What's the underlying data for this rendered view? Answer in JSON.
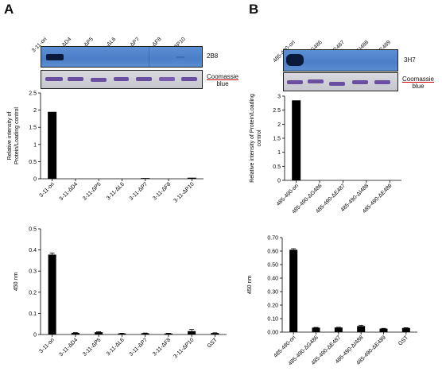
{
  "panels": [
    {
      "letter": "A",
      "blot": {
        "lanes": [
          "3-11-ori",
          "3-11-ΔD4",
          "3-11-ΔP5",
          "3-11-ΔL6",
          "3-11-ΔP7",
          "3-11-ΔF8",
          "3-11-ΔP10"
        ],
        "antibody": "2B8",
        "loading_label_1": "Coomassie",
        "loading_label_2": "blue"
      }
    },
    {
      "letter": "B",
      "blot": {
        "lanes": [
          "485-490-ori",
          "485-490-ΔG486",
          "485-490-ΔE487",
          "485-490-ΔI488",
          "485-490-ΔE489"
        ],
        "antibody": "3H7",
        "loading_label_1": "Coomassie",
        "loading_label_2": "blue"
      }
    }
  ],
  "colors": {
    "blot_blue": "#4a7fc8",
    "band_dark": "#0b1a3a",
    "coomassie_band": "#6a4ea0",
    "bar": "#000000",
    "coomassie_underline": "#cc0000"
  },
  "chart_data": [
    {
      "type": "bar",
      "panel": "A",
      "ylabel": "Relative intensity of Protein/Loading control",
      "categories": [
        "3-11-ori",
        "3-11-ΔD4",
        "3-11-ΔP5",
        "3-11-ΔL6",
        "3-11-ΔP7",
        "3-11-ΔF8",
        "3-11-ΔP10"
      ],
      "values": [
        1.95,
        0.0,
        0.0,
        0.0,
        0.02,
        0.0,
        0.03
      ],
      "errors": [
        0,
        0,
        0,
        0,
        0,
        0,
        0
      ],
      "ylim": [
        0,
        2.5
      ],
      "yticks": [
        "0",
        "0.5",
        "1",
        "1.5",
        "2",
        "2.5"
      ],
      "grid": false
    },
    {
      "type": "bar",
      "panel": "A",
      "ylabel": "450 nm",
      "categories": [
        "3-11-ori",
        "3-11-ΔD4",
        "3-11-ΔP5",
        "3-11-ΔL6",
        "3-11-ΔP7",
        "3-11-ΔF8",
        "3-11-ΔP10",
        "GST"
      ],
      "values": [
        0.378,
        0.008,
        0.011,
        0.005,
        0.006,
        0.005,
        0.016,
        0.007
      ],
      "errors": [
        0.007,
        0.001,
        0.002,
        0.001,
        0.001,
        0.001,
        0.008,
        0.001
      ],
      "ylim": [
        0,
        0.5
      ],
      "yticks": [
        "0",
        "0.1",
        "0.2",
        "0.3",
        "0.4",
        "0.5"
      ],
      "grid": false
    },
    {
      "type": "bar",
      "panel": "B",
      "ylabel": "Relative intensity of Protein/Loading control",
      "categories": [
        "485-490-ori",
        "485-490-ΔG486",
        "485-490-ΔE487",
        "485-490-ΔI488",
        "485-490-ΔE489"
      ],
      "values": [
        2.85,
        0.0,
        0.0,
        0.0,
        0.0
      ],
      "errors": [
        0,
        0,
        0,
        0,
        0
      ],
      "ylim": [
        0,
        3
      ],
      "yticks": [
        "0",
        "0.5",
        "1",
        "1.5",
        "2",
        "2.5",
        "3"
      ],
      "grid": false
    },
    {
      "type": "bar",
      "panel": "B",
      "ylabel": "450 nm",
      "categories": [
        "485-490-ori",
        "485-490-ΔG486",
        "485-490-ΔE487",
        "485-490-ΔI488",
        "485-490-ΔE489",
        "GST"
      ],
      "values": [
        0.61,
        0.033,
        0.034,
        0.045,
        0.026,
        0.031
      ],
      "errors": [
        0.008,
        0.002,
        0.002,
        0.006,
        0.002,
        0.002
      ],
      "ylim": [
        0,
        0.7
      ],
      "yticks": [
        "0.00",
        "0.10",
        "0.20",
        "0.30",
        "0.40",
        "0.50",
        "0.60",
        "0.70"
      ],
      "grid": false
    }
  ]
}
